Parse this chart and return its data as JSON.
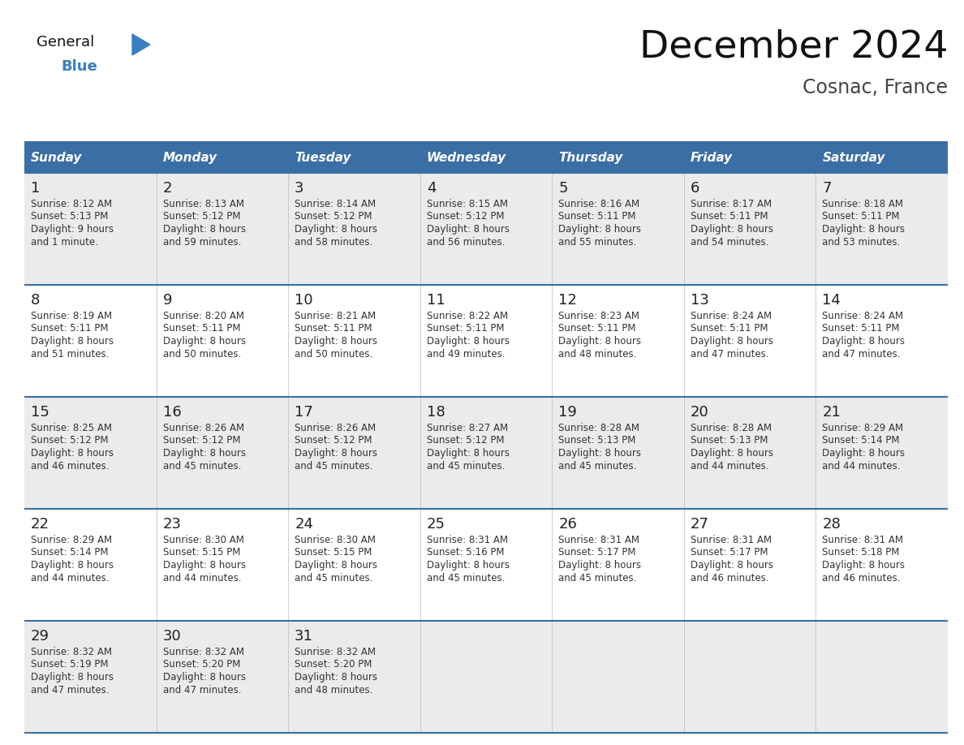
{
  "title": "December 2024",
  "subtitle": "Cosnac, France",
  "days_of_week": [
    "Sunday",
    "Monday",
    "Tuesday",
    "Wednesday",
    "Thursday",
    "Friday",
    "Saturday"
  ],
  "header_bg": "#3a6ea5",
  "header_text": "#FFFFFF",
  "row_bg_odd": "#EBEBEB",
  "row_bg_even": "#FFFFFF",
  "day_num_color": "#222222",
  "cell_text_color": "#333333",
  "grid_line_color": "#3a6ea5",
  "title_color": "#111111",
  "subtitle_color": "#444444",
  "logo_general_color": "#111111",
  "logo_blue_color": "#3a7fc1",
  "weeks": [
    [
      {
        "day": 1,
        "sunrise": "8:12 AM",
        "sunset": "5:13 PM",
        "daylight_hours": 9,
        "daylight_minutes": 1,
        "minute_label": "minute"
      },
      {
        "day": 2,
        "sunrise": "8:13 AM",
        "sunset": "5:12 PM",
        "daylight_hours": 8,
        "daylight_minutes": 59,
        "minute_label": "minutes"
      },
      {
        "day": 3,
        "sunrise": "8:14 AM",
        "sunset": "5:12 PM",
        "daylight_hours": 8,
        "daylight_minutes": 58,
        "minute_label": "minutes"
      },
      {
        "day": 4,
        "sunrise": "8:15 AM",
        "sunset": "5:12 PM",
        "daylight_hours": 8,
        "daylight_minutes": 56,
        "minute_label": "minutes"
      },
      {
        "day": 5,
        "sunrise": "8:16 AM",
        "sunset": "5:11 PM",
        "daylight_hours": 8,
        "daylight_minutes": 55,
        "minute_label": "minutes"
      },
      {
        "day": 6,
        "sunrise": "8:17 AM",
        "sunset": "5:11 PM",
        "daylight_hours": 8,
        "daylight_minutes": 54,
        "minute_label": "minutes"
      },
      {
        "day": 7,
        "sunrise": "8:18 AM",
        "sunset": "5:11 PM",
        "daylight_hours": 8,
        "daylight_minutes": 53,
        "minute_label": "minutes"
      }
    ],
    [
      {
        "day": 8,
        "sunrise": "8:19 AM",
        "sunset": "5:11 PM",
        "daylight_hours": 8,
        "daylight_minutes": 51,
        "minute_label": "minutes"
      },
      {
        "day": 9,
        "sunrise": "8:20 AM",
        "sunset": "5:11 PM",
        "daylight_hours": 8,
        "daylight_minutes": 50,
        "minute_label": "minutes"
      },
      {
        "day": 10,
        "sunrise": "8:21 AM",
        "sunset": "5:11 PM",
        "daylight_hours": 8,
        "daylight_minutes": 50,
        "minute_label": "minutes"
      },
      {
        "day": 11,
        "sunrise": "8:22 AM",
        "sunset": "5:11 PM",
        "daylight_hours": 8,
        "daylight_minutes": 49,
        "minute_label": "minutes"
      },
      {
        "day": 12,
        "sunrise": "8:23 AM",
        "sunset": "5:11 PM",
        "daylight_hours": 8,
        "daylight_minutes": 48,
        "minute_label": "minutes"
      },
      {
        "day": 13,
        "sunrise": "8:24 AM",
        "sunset": "5:11 PM",
        "daylight_hours": 8,
        "daylight_minutes": 47,
        "minute_label": "minutes"
      },
      {
        "day": 14,
        "sunrise": "8:24 AM",
        "sunset": "5:11 PM",
        "daylight_hours": 8,
        "daylight_minutes": 47,
        "minute_label": "minutes"
      }
    ],
    [
      {
        "day": 15,
        "sunrise": "8:25 AM",
        "sunset": "5:12 PM",
        "daylight_hours": 8,
        "daylight_minutes": 46,
        "minute_label": "minutes"
      },
      {
        "day": 16,
        "sunrise": "8:26 AM",
        "sunset": "5:12 PM",
        "daylight_hours": 8,
        "daylight_minutes": 45,
        "minute_label": "minutes"
      },
      {
        "day": 17,
        "sunrise": "8:26 AM",
        "sunset": "5:12 PM",
        "daylight_hours": 8,
        "daylight_minutes": 45,
        "minute_label": "minutes"
      },
      {
        "day": 18,
        "sunrise": "8:27 AM",
        "sunset": "5:12 PM",
        "daylight_hours": 8,
        "daylight_minutes": 45,
        "minute_label": "minutes"
      },
      {
        "day": 19,
        "sunrise": "8:28 AM",
        "sunset": "5:13 PM",
        "daylight_hours": 8,
        "daylight_minutes": 45,
        "minute_label": "minutes"
      },
      {
        "day": 20,
        "sunrise": "8:28 AM",
        "sunset": "5:13 PM",
        "daylight_hours": 8,
        "daylight_minutes": 44,
        "minute_label": "minutes"
      },
      {
        "day": 21,
        "sunrise": "8:29 AM",
        "sunset": "5:14 PM",
        "daylight_hours": 8,
        "daylight_minutes": 44,
        "minute_label": "minutes"
      }
    ],
    [
      {
        "day": 22,
        "sunrise": "8:29 AM",
        "sunset": "5:14 PM",
        "daylight_hours": 8,
        "daylight_minutes": 44,
        "minute_label": "minutes"
      },
      {
        "day": 23,
        "sunrise": "8:30 AM",
        "sunset": "5:15 PM",
        "daylight_hours": 8,
        "daylight_minutes": 44,
        "minute_label": "minutes"
      },
      {
        "day": 24,
        "sunrise": "8:30 AM",
        "sunset": "5:15 PM",
        "daylight_hours": 8,
        "daylight_minutes": 45,
        "minute_label": "minutes"
      },
      {
        "day": 25,
        "sunrise": "8:31 AM",
        "sunset": "5:16 PM",
        "daylight_hours": 8,
        "daylight_minutes": 45,
        "minute_label": "minutes"
      },
      {
        "day": 26,
        "sunrise": "8:31 AM",
        "sunset": "5:17 PM",
        "daylight_hours": 8,
        "daylight_minutes": 45,
        "minute_label": "minutes"
      },
      {
        "day": 27,
        "sunrise": "8:31 AM",
        "sunset": "5:17 PM",
        "daylight_hours": 8,
        "daylight_minutes": 46,
        "minute_label": "minutes"
      },
      {
        "day": 28,
        "sunrise": "8:31 AM",
        "sunset": "5:18 PM",
        "daylight_hours": 8,
        "daylight_minutes": 46,
        "minute_label": "minutes"
      }
    ],
    [
      {
        "day": 29,
        "sunrise": "8:32 AM",
        "sunset": "5:19 PM",
        "daylight_hours": 8,
        "daylight_minutes": 47,
        "minute_label": "minutes"
      },
      {
        "day": 30,
        "sunrise": "8:32 AM",
        "sunset": "5:20 PM",
        "daylight_hours": 8,
        "daylight_minutes": 47,
        "minute_label": "minutes"
      },
      {
        "day": 31,
        "sunrise": "8:32 AM",
        "sunset": "5:20 PM",
        "daylight_hours": 8,
        "daylight_minutes": 48,
        "minute_label": "minutes"
      },
      null,
      null,
      null,
      null
    ]
  ]
}
